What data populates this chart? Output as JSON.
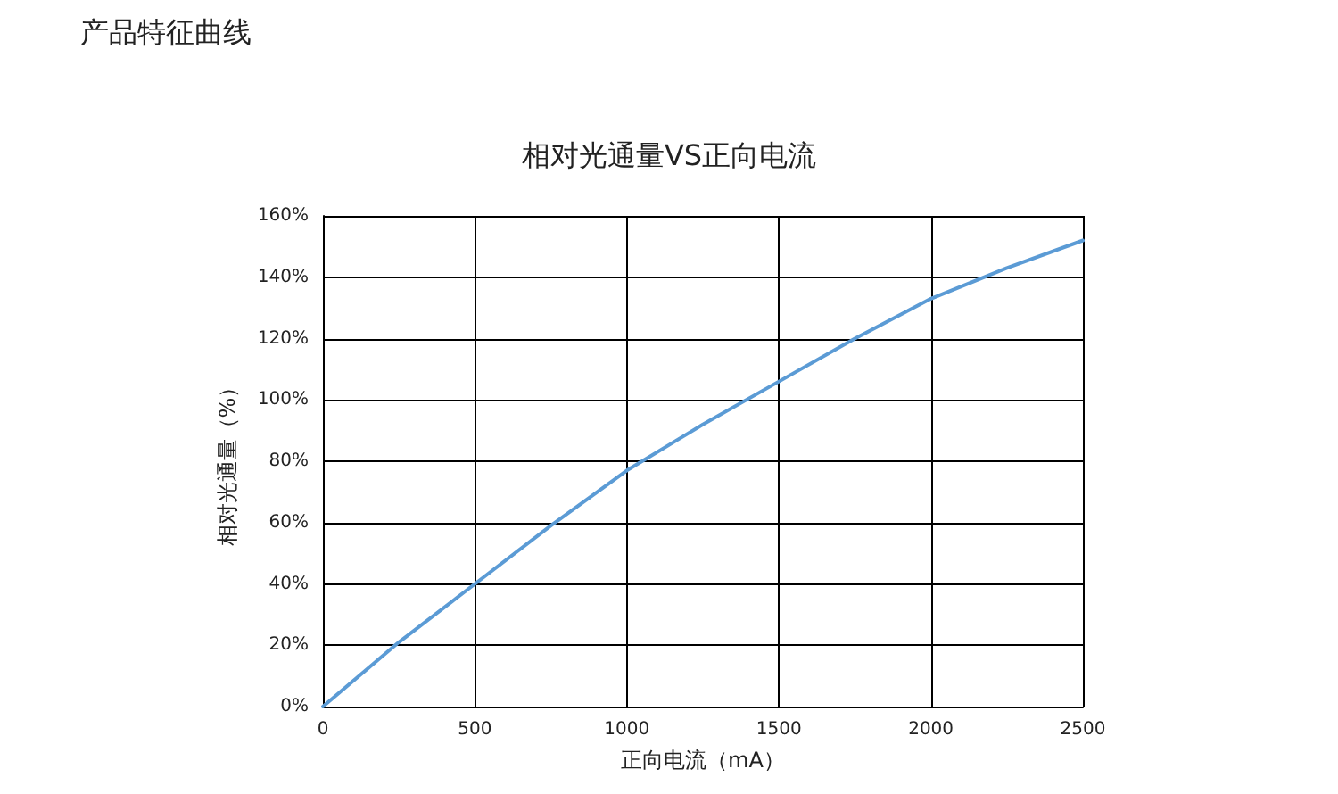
{
  "chart_data": {
    "type": "line",
    "title": "相对光通量VS正向电流",
    "xlabel": "正向电流（mA）",
    "ylabel": "相对光通量（%）",
    "annotations": [
      "产品特征曲线"
    ],
    "x": [
      0,
      250,
      500,
      750,
      1000,
      1250,
      1500,
      1750,
      2000,
      2250,
      2500
    ],
    "series": [
      {
        "color": "#5b9bd5",
        "values": [
          0,
          21,
          40,
          59,
          77,
          92,
          106,
          120,
          133,
          143,
          152
        ]
      }
    ],
    "xlim": [
      0,
      2500
    ],
    "xticks": [
      0,
      500,
      1000,
      1500,
      2000,
      2500
    ],
    "ylim": [
      0,
      160
    ],
    "yticks": [
      {
        "value": 0,
        "label": "0%"
      },
      {
        "value": 20,
        "label": "20%"
      },
      {
        "value": 40,
        "label": "40%"
      },
      {
        "value": 60,
        "label": "60%"
      },
      {
        "value": 80,
        "label": "80%"
      },
      {
        "value": 100,
        "label": "100%"
      },
      {
        "value": 120,
        "label": "120%"
      },
      {
        "value": 140,
        "label": "140%"
      },
      {
        "value": 160,
        "label": "160%"
      }
    ],
    "grid": true,
    "marker": "none",
    "line_style": "solid"
  }
}
